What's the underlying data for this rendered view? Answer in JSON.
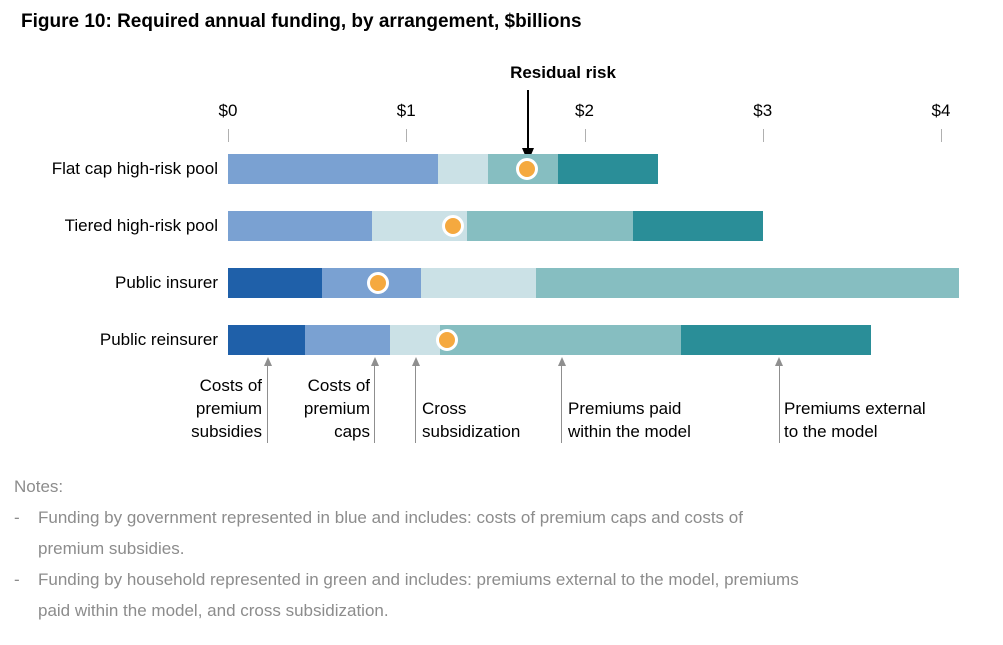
{
  "title": "Figure 10: Required annual funding, by arrangement, $billions",
  "chart_data": {
    "type": "bar",
    "orientation": "horizontal",
    "units": "$billions",
    "title": "Figure 10: Required annual funding, by arrangement, $billions",
    "xlim": [
      0,
      4.35
    ],
    "x_ticks": [
      {
        "label": "$0",
        "value": 0
      },
      {
        "label": "$1",
        "value": 1
      },
      {
        "label": "$2",
        "value": 2
      },
      {
        "label": "$3",
        "value": 3
      },
      {
        "label": "$4",
        "value": 4
      }
    ],
    "categories": [
      "Flat cap high-risk pool",
      "Tiered high-risk pool",
      "Public insurer",
      "Public reinsurer"
    ],
    "segments": [
      {
        "label": "Costs of premium subsidies",
        "color": "#1F60A9",
        "pointer_x": 0.22
      },
      {
        "label": "Costs of premium caps",
        "color": "#7AA1D2",
        "pointer_x": 0.82
      },
      {
        "label": "Cross subsidization",
        "color": "#CBE1E6",
        "pointer_x": 1.05
      },
      {
        "label": "Premiums paid within the model",
        "color": "#86BEC1",
        "pointer_x": 1.87
      },
      {
        "label": "Premiums external to the model",
        "color": "#2A8E98",
        "pointer_x": 3.09
      }
    ],
    "series": [
      {
        "name": "Costs of premium subsidies",
        "values": [
          0,
          0,
          0.53,
          0.43
        ]
      },
      {
        "name": "Costs of premium caps",
        "values": [
          1.18,
          0.81,
          0.55,
          0.48
        ]
      },
      {
        "name": "Cross subsidization",
        "values": [
          0.28,
          0.53,
          0.65,
          0.28
        ]
      },
      {
        "name": "Premiums paid within the model",
        "values": [
          0.39,
          0.93,
          2.37,
          1.35
        ]
      },
      {
        "name": "Premiums external to the model",
        "values": [
          0.56,
          0.73,
          0,
          1.07
        ]
      }
    ],
    "totals": [
      2.41,
      3.0,
      4.1,
      3.61
    ],
    "residual_risk": {
      "label": "Residual risk",
      "marker_color": "#F5A93F",
      "values": [
        1.68,
        1.26,
        0.84,
        1.23
      ]
    }
  },
  "notes": {
    "heading": "Notes:",
    "dash": "-",
    "bullets": [
      [
        "Funding by government represented in blue and includes: costs of premium caps and costs of",
        "premium subsidies."
      ],
      [
        "Funding by household represented in green and includes: premiums external to the model, premiums",
        "paid within the model, and cross subsidization."
      ]
    ]
  }
}
